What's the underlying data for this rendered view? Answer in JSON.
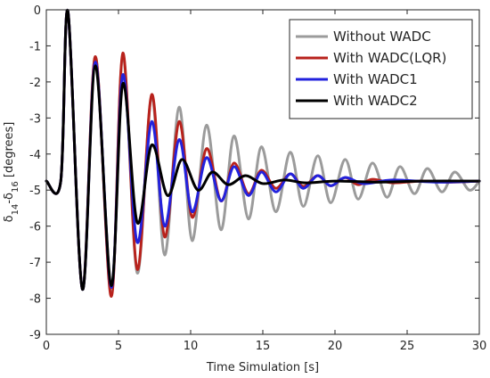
{
  "chart_data": {
    "type": "line",
    "xlabel": "Time Simulation [s]",
    "ylabel": {
      "base1": "δ",
      "sub1": "14",
      "mid": "-δ",
      "sub2": "16",
      "unit": " [degrees]"
    },
    "xlim": [
      0,
      30
    ],
    "ylim": [
      -9,
      0
    ],
    "x_ticks": [
      "0",
      "5",
      "10",
      "15",
      "20",
      "25",
      "30"
    ],
    "y_ticks": [
      "0",
      "-1",
      "-2",
      "-3",
      "-4",
      "-5",
      "-6",
      "-7",
      "-8",
      "-9"
    ],
    "grid": false,
    "legend_position": "top-right",
    "series": [
      {
        "name": "Without WADC",
        "color": "#9b9b9b",
        "x": [
          0,
          1.0,
          1.5,
          2.5,
          3.4,
          4.5,
          5.3,
          6.3,
          7.3,
          8.2,
          9.2,
          10.1,
          11.1,
          12.1,
          13.0,
          14.0,
          14.9,
          15.9,
          16.9,
          17.8,
          18.8,
          19.7,
          20.7,
          21.6,
          22.6,
          23.6,
          24.5,
          25.5,
          26.4,
          27.4,
          28.3,
          29.3,
          30
        ],
        "y": [
          -4.75,
          -4.75,
          -0.05,
          -7.75,
          -1.3,
          -7.9,
          -1.25,
          -7.3,
          -2.4,
          -6.8,
          -2.7,
          -6.4,
          -3.2,
          -6.1,
          -3.5,
          -5.8,
          -3.8,
          -5.6,
          -3.95,
          -5.45,
          -4.05,
          -5.35,
          -4.15,
          -5.25,
          -4.25,
          -5.2,
          -4.35,
          -5.1,
          -4.4,
          -5.05,
          -4.5,
          -5.0,
          -4.75
        ]
      },
      {
        "name": "With WADC(LQR)",
        "color": "#b8221c",
        "x": [
          0,
          1.0,
          1.5,
          2.5,
          3.4,
          4.5,
          5.3,
          6.3,
          7.3,
          8.2,
          9.2,
          10.1,
          11.1,
          12.1,
          13.0,
          14.0,
          14.9,
          15.9,
          16.9,
          17.8,
          18.8,
          19.7,
          20.7,
          21.6,
          22.6,
          24.0,
          26.0,
          28.0,
          30
        ],
        "y": [
          -4.75,
          -4.75,
          -0.05,
          -7.75,
          -1.3,
          -7.95,
          -1.2,
          -7.2,
          -2.35,
          -6.3,
          -3.1,
          -5.75,
          -3.85,
          -5.3,
          -4.25,
          -5.1,
          -4.45,
          -4.95,
          -4.55,
          -4.9,
          -4.6,
          -4.88,
          -4.65,
          -4.85,
          -4.7,
          -4.8,
          -4.75,
          -4.78,
          -4.75
        ]
      },
      {
        "name": "With WADC1",
        "color": "#2222dd",
        "x": [
          0,
          1.0,
          1.5,
          2.5,
          3.4,
          4.5,
          5.3,
          6.3,
          7.3,
          8.2,
          9.2,
          10.1,
          11.1,
          12.1,
          13.0,
          14.0,
          14.9,
          15.9,
          16.9,
          17.8,
          18.8,
          19.7,
          20.7,
          22.0,
          24.0,
          27.0,
          30
        ],
        "y": [
          -4.75,
          -4.75,
          -0.05,
          -7.75,
          -1.45,
          -7.7,
          -1.8,
          -6.45,
          -3.1,
          -6.0,
          -3.6,
          -5.6,
          -4.1,
          -5.3,
          -4.35,
          -5.15,
          -4.5,
          -5.05,
          -4.55,
          -4.95,
          -4.6,
          -4.88,
          -4.65,
          -4.82,
          -4.72,
          -4.78,
          -4.75
        ]
      },
      {
        "name": "With WADC2",
        "color": "#000000",
        "x": [
          0,
          1.0,
          1.5,
          2.5,
          3.4,
          4.5,
          5.3,
          6.3,
          7.3,
          8.4,
          9.4,
          10.5,
          11.5,
          12.6,
          13.8,
          15.0,
          16.5,
          18.0,
          20.0,
          23.0,
          26.0,
          30
        ],
        "y": [
          -4.75,
          -4.75,
          -0.05,
          -7.75,
          -1.55,
          -7.65,
          -2.05,
          -5.9,
          -3.75,
          -5.15,
          -4.15,
          -5.0,
          -4.5,
          -4.85,
          -4.6,
          -4.82,
          -4.72,
          -4.8,
          -4.75,
          -4.78,
          -4.75,
          -4.75
        ]
      }
    ]
  }
}
